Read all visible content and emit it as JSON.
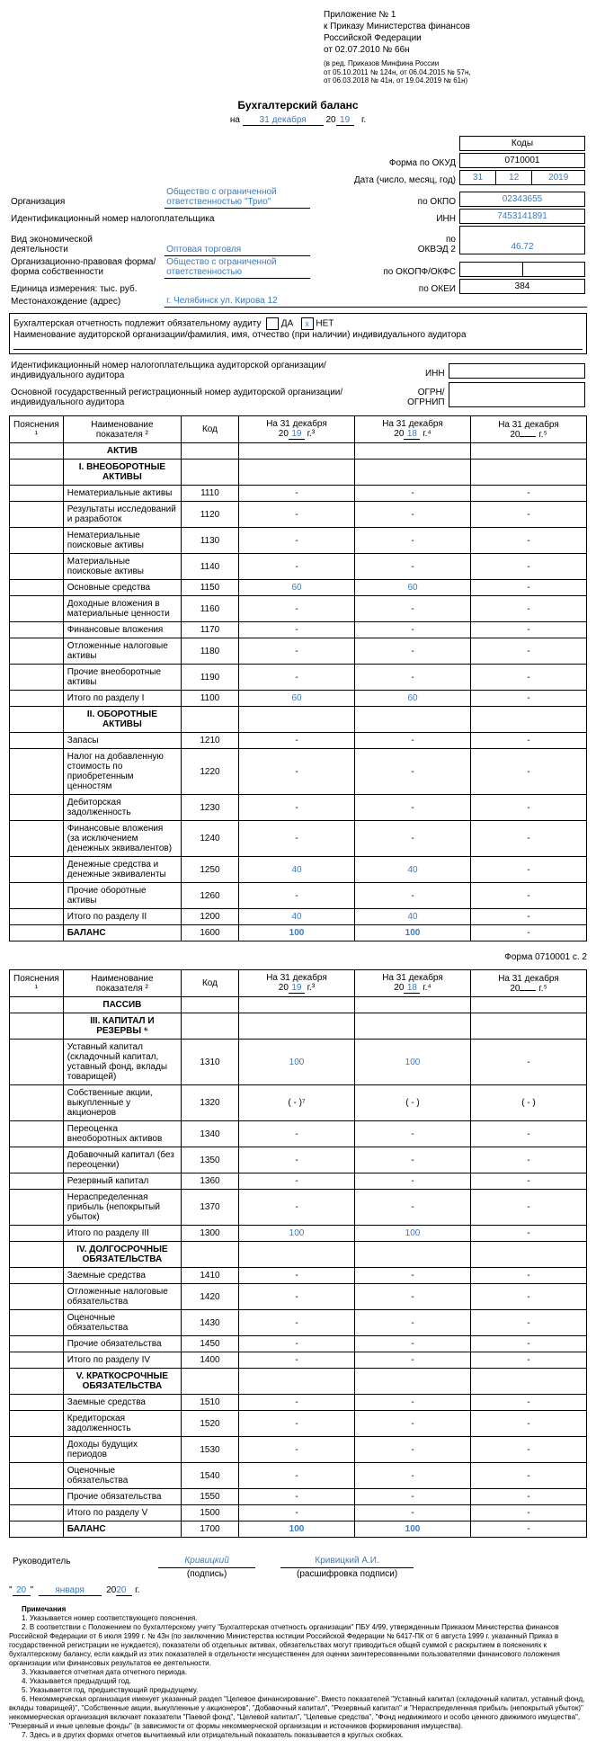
{
  "header": {
    "appendix": "Приложение № 1",
    "order1": "к Приказу Министерства финансов",
    "order2": "Российской Федерации",
    "order3": "от 02.07.2010 № 66н",
    "sub": "(в ред. Приказов Минфина России\nот 05.10.2011 № 124н, от 06.04.2015 № 57н,\nот 06.03.2018 № 41н, от 19.04.2019 № 61н)"
  },
  "title": "Бухгалтерский баланс",
  "date": {
    "prefix": "на",
    "day": "31 декабря",
    "centuryPrefix": "20",
    "year2": "19",
    "suffix": "г."
  },
  "codes": {
    "heading": "Коды",
    "okudLabel": "Форма по ОКУД",
    "okud": "0710001",
    "dateLabel": "Дата (число, месяц, год)",
    "d": "31",
    "m": "12",
    "y": "2019",
    "okpoLabel": "по ОКПО",
    "okpo": "02343655",
    "innLabel": "ИНН",
    "inn": "7453141891",
    "okvedLabel": "по\nОКВЭД 2",
    "okved": "46.72",
    "okopfLabel": "по ОКОПФ/ОКФС",
    "okopf": "",
    "okeiLabel": "по ОКЕИ",
    "okei": "384"
  },
  "org": {
    "orgLabel": "Организация",
    "orgVal": "Общество с ограниченной ответственностью \"Трио\"",
    "innRowLabel": "Идентификационный номер налогоплательщика",
    "activityLabel": "Вид экономической\nдеятельности",
    "activityVal": "Оптовая торговля",
    "formLabel": "Организационно-правовая форма/форма собственности",
    "formVal": "Общество с ограниченной\nответственностью",
    "unitLabel": "Единица измерения: тыс. руб.",
    "addrLabel": "Местонахождение (адрес)",
    "addrVal": "г. Челябинск ул. Кирова 12"
  },
  "audit": {
    "line1": "Бухгалтерская отчетность подлежит обязательному аудиту",
    "yes": "ДА",
    "no": "НЕТ",
    "checked": "no",
    "line2": "Наименование аудиторской организации/фамилия, имя, отчество (при наличии) индивидуального аудитора",
    "block2a": "Идентификационный номер налогоплательщика аудиторской организации/индивидуального аудитора",
    "block2b": "Основной государственный регистрационный номер аудиторской организации/индивидуального аудитора",
    "innL": "ИНН",
    "ogrnL": "ОГРН/\nОГРНИП"
  },
  "tableHead": {
    "c1": "Пояснения ¹",
    "c2": "Наименование показателя ²",
    "c3": "Код",
    "c4a": "На 31 декабря",
    "c4b": "20",
    "c4y": "19",
    "c4s": "г.³",
    "c5a": "На 31 декабря",
    "c5b": "20",
    "c5y": "18",
    "c5s": "г.⁴",
    "c6a": "На 31 декабря",
    "c6b": "20",
    "c6y": "",
    "c6s": "г.⁵"
  },
  "rows1": [
    {
      "t": "section",
      "label": "АКТИВ"
    },
    {
      "t": "section",
      "label": "I. ВНЕОБОРОТНЫЕ АКТИВЫ"
    },
    {
      "t": "row",
      "label": "Нематериальные активы",
      "code": "1110",
      "v1": "-",
      "v2": "-",
      "v3": "-"
    },
    {
      "t": "row",
      "label": "Результаты исследований и разработок",
      "code": "1120",
      "v1": "-",
      "v2": "-",
      "v3": "-"
    },
    {
      "t": "row",
      "label": "Нематериальные поисковые активы",
      "code": "1130",
      "v1": "-",
      "v2": "-",
      "v3": "-"
    },
    {
      "t": "row",
      "label": "Материальные поисковые активы",
      "code": "1140",
      "v1": "-",
      "v2": "-",
      "v3": "-"
    },
    {
      "t": "row",
      "label": "Основные средства",
      "code": "1150",
      "v1": "60",
      "v2": "60",
      "v3": "-",
      "blue": true
    },
    {
      "t": "row",
      "label": "Доходные вложения в материальные ценности",
      "code": "1160",
      "v1": "-",
      "v2": "-",
      "v3": "-"
    },
    {
      "t": "row",
      "label": "Финансовые вложения",
      "code": "1170",
      "v1": "-",
      "v2": "-",
      "v3": "-"
    },
    {
      "t": "row",
      "label": "Отложенные налоговые активы",
      "code": "1180",
      "v1": "-",
      "v2": "-",
      "v3": "-"
    },
    {
      "t": "row",
      "label": "Прочие внеоборотные активы",
      "code": "1190",
      "v1": "-",
      "v2": "-",
      "v3": "-"
    },
    {
      "t": "row",
      "label": "Итого по разделу I",
      "code": "1100",
      "v1": "60",
      "v2": "60",
      "v3": "-",
      "blue": true
    },
    {
      "t": "section",
      "label": "II. ОБОРОТНЫЕ АКТИВЫ"
    },
    {
      "t": "row",
      "label": "Запасы",
      "code": "1210",
      "v1": "-",
      "v2": "-",
      "v3": "-"
    },
    {
      "t": "row",
      "label": "Налог на добавленную стоимость по приобретенным ценностям",
      "code": "1220",
      "v1": "-",
      "v2": "-",
      "v3": "-"
    },
    {
      "t": "row",
      "label": "Дебиторская задолженность",
      "code": "1230",
      "v1": "-",
      "v2": "-",
      "v3": "-"
    },
    {
      "t": "row",
      "label": "Финансовые вложения (за исключением денежных эквивалентов)",
      "code": "1240",
      "v1": "-",
      "v2": "-",
      "v3": "-"
    },
    {
      "t": "row",
      "label": "Денежные средства и денежные эквиваленты",
      "code": "1250",
      "v1": "40",
      "v2": "40",
      "v3": "-",
      "blue": true
    },
    {
      "t": "row",
      "label": "Прочие оборотные активы",
      "code": "1260",
      "v1": "-",
      "v2": "-",
      "v3": "-"
    },
    {
      "t": "row",
      "label": "Итого по разделу II",
      "code": "1200",
      "v1": "40",
      "v2": "40",
      "v3": "-",
      "blue": true
    },
    {
      "t": "row",
      "label": "БАЛАНС",
      "code": "1600",
      "v1": "100",
      "v2": "100",
      "v3": "-",
      "blue": true,
      "bold": true
    }
  ],
  "page2label": "Форма 0710001 с. 2",
  "rows2": [
    {
      "t": "section",
      "label": "ПАССИВ"
    },
    {
      "t": "section",
      "label": "III. КАПИТАЛ И РЕЗЕРВЫ ⁶"
    },
    {
      "t": "row",
      "label": "Уставный капитал (складочный капитал, уставный фонд, вклады товарищей)",
      "code": "1310",
      "v1": "100",
      "v2": "100",
      "v3": "-",
      "blue": true
    },
    {
      "t": "row",
      "label": "Собственные акции, выкупленные у акционеров",
      "code": "1320",
      "v1": "(          -          )⁷",
      "v2": "(          -          )",
      "v3": "(          -          )"
    },
    {
      "t": "row",
      "label": "Переоценка внеоборотных активов",
      "code": "1340",
      "v1": "-",
      "v2": "-",
      "v3": "-"
    },
    {
      "t": "row",
      "label": "Добавочный капитал (без переоценки)",
      "code": "1350",
      "v1": "-",
      "v2": "-",
      "v3": "-"
    },
    {
      "t": "row",
      "label": "Резервный капитал",
      "code": "1360",
      "v1": "-",
      "v2": "-",
      "v3": "-"
    },
    {
      "t": "row",
      "label": "Нераспределенная прибыль (непокрытый убыток)",
      "code": "1370",
      "v1": "-",
      "v2": "-",
      "v3": "-"
    },
    {
      "t": "row",
      "label": "Итого по разделу III",
      "code": "1300",
      "v1": "100",
      "v2": "100",
      "v3": "-",
      "blue": true
    },
    {
      "t": "section",
      "label": "IV. ДОЛГОСРОЧНЫЕ ОБЯЗАТЕЛЬСТВА"
    },
    {
      "t": "row",
      "label": "Заемные средства",
      "code": "1410",
      "v1": "-",
      "v2": "-",
      "v3": "-"
    },
    {
      "t": "row",
      "label": "Отложенные налоговые обязательства",
      "code": "1420",
      "v1": "-",
      "v2": "-",
      "v3": "-"
    },
    {
      "t": "row",
      "label": "Оценочные обязательства",
      "code": "1430",
      "v1": "-",
      "v2": "-",
      "v3": "-"
    },
    {
      "t": "row",
      "label": "Прочие обязательства",
      "code": "1450",
      "v1": "-",
      "v2": "-",
      "v3": "-"
    },
    {
      "t": "row",
      "label": "Итого по разделу IV",
      "code": "1400",
      "v1": "-",
      "v2": "-",
      "v3": "-"
    },
    {
      "t": "section",
      "label": "V. КРАТКОСРОЧНЫЕ ОБЯЗАТЕЛЬСТВА"
    },
    {
      "t": "row",
      "label": "Заемные средства",
      "code": "1510",
      "v1": "-",
      "v2": "-",
      "v3": "-"
    },
    {
      "t": "row",
      "label": "Кредиторская задолженность",
      "code": "1520",
      "v1": "-",
      "v2": "-",
      "v3": "-"
    },
    {
      "t": "row",
      "label": "Доходы будущих периодов",
      "code": "1530",
      "v1": "-",
      "v2": "-",
      "v3": "-"
    },
    {
      "t": "row",
      "label": "Оценочные обязательства",
      "code": "1540",
      "v1": "-",
      "v2": "-",
      "v3": "-"
    },
    {
      "t": "row",
      "label": "Прочие обязательства",
      "code": "1550",
      "v1": "-",
      "v2": "-",
      "v3": "-"
    },
    {
      "t": "row",
      "label": "Итого по разделу V",
      "code": "1500",
      "v1": "-",
      "v2": "-",
      "v3": "-"
    },
    {
      "t": "row",
      "label": "БАЛАНС",
      "code": "1700",
      "v1": "100",
      "v2": "100",
      "v3": "-",
      "blue": true,
      "bold": true
    }
  ],
  "sig": {
    "leaderLabel": "Руководитель",
    "sigVal": "Кривицкий",
    "sigCap": "(подпись)",
    "nameVal": "Кривицкий А.И.",
    "nameCap": "(расшифровка подписи)",
    "q": "\"",
    "day": "20",
    "q2": "\"",
    "month": "января",
    "yp": "20",
    "yy": "20",
    "ys": "г."
  },
  "notes": {
    "title": "Примечания",
    "n1": "1. Указывается номер соответствующего пояснения.",
    "n2": "2. В соответствии с Положением по бухгалтерскому учету \"Бухгалтерская отчетность организации\" ПБУ 4/99, утвержденным Приказом Министерства финансов Российской Федерации от 6 июля 1999 г. № 43н (по заключению Министерства юстиции Российской Федерации № 6417-ПК от 6 августа 1999 г. указанный Приказ в государственной регистрации не нуждается), показатели об отдельных активах, обязательствах могут приводиться общей суммой с раскрытием в пояснениях к бухгалтерскому балансу, если каждый из этих показателей в отдельности несущественен для оценки заинтересованными пользователями финансового положения организации или финансовых результатов ее деятельности.",
    "n3": "3. Указывается отчетная дата отчетного периода.",
    "n4": "4. Указывается предыдущий год.",
    "n5": "5. Указывается год, предшествующий предыдущему.",
    "n6": "6. Некоммерческая организация именует указанный раздел \"Целевое финансирование\". Вместо показателей \"Уставный капитал (складочный капитал, уставный фонд, вклады товарищей)\", \"Собственные акции, выкупленные у акционеров\", \"Добавочный капитал\", \"Резервный капитал\" и \"Нераспределенная прибыль (непокрытый убыток)\" некоммерческая организация включает показатели \"Паевой фонд\", \"Целевой капитал\", \"Целевые средства\", \"Фонд недвижимого и особо ценного движимого имущества\", \"Резервный и иные целевые фонды\" (в зависимости от формы некоммерческой организации и источников формирования имущества).",
    "n7": "7. Здесь и в других формах отчетов вычитаемый или отрицательный показатель показывается в круглых скобках."
  }
}
